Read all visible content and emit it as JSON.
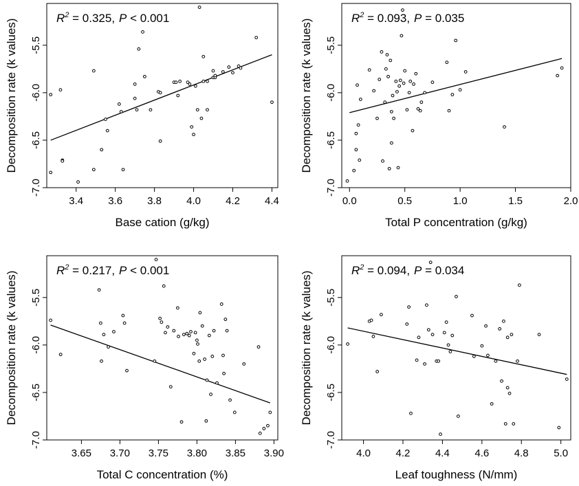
{
  "chart_data": [
    {
      "type": "scatter",
      "xlabel": "Base cation (g/kg)",
      "ylabel": "Decomposition rate (k values)",
      "xlim": [
        3.25,
        4.43
      ],
      "ylim": [
        -7.0,
        -5.06
      ],
      "xticks": [
        3.4,
        3.6,
        3.8,
        4.0,
        4.2,
        4.4
      ],
      "xtick_labels": [
        "3.4",
        "3.6",
        "3.8",
        "4.0",
        "4.2",
        "4.4"
      ],
      "yticks": [
        -7.0,
        -6.5,
        -6.0,
        -5.5
      ],
      "ytick_labels": [
        "-7.0",
        "-6.5",
        "-6.0",
        "-5.5"
      ],
      "annotation": {
        "r2_label": "R",
        "r2_sup": "2",
        "r2_value": " = 0.325,",
        "p_label": "P",
        "p_value": " < 0.001"
      },
      "fit_line": {
        "x": [
          3.27,
          4.4
        ],
        "y": [
          -6.5,
          -5.6
        ]
      },
      "points": {
        "x": [
          3.27,
          3.27,
          3.32,
          3.33,
          3.33,
          3.41,
          3.49,
          3.49,
          3.53,
          3.55,
          3.56,
          3.62,
          3.63,
          3.64,
          3.7,
          3.7,
          3.71,
          3.72,
          3.74,
          3.75,
          3.78,
          3.82,
          3.83,
          3.83,
          3.9,
          3.91,
          3.92,
          3.93,
          3.97,
          3.98,
          3.99,
          4.0,
          4.01,
          4.02,
          4.03,
          4.04,
          4.05,
          4.05,
          4.07,
          4.07,
          4.1,
          4.1,
          4.11,
          4.11,
          4.15,
          4.18,
          4.2,
          4.23,
          4.24,
          4.32,
          4.4
        ],
        "y": [
          -6.02,
          -6.84,
          -5.97,
          -6.71,
          -6.72,
          -6.94,
          -5.77,
          -6.81,
          -6.6,
          -6.28,
          -6.4,
          -6.12,
          -6.2,
          -6.81,
          -6.06,
          -5.91,
          -6.18,
          -5.54,
          -5.36,
          -5.83,
          -6.18,
          -5.99,
          -6.51,
          -6.0,
          -5.89,
          -5.89,
          -6.03,
          -5.88,
          -5.89,
          -5.91,
          -6.36,
          -6.44,
          -5.93,
          -6.18,
          -5.1,
          -6.27,
          -5.62,
          -5.88,
          -6.18,
          -5.88,
          -5.84,
          -5.77,
          -5.84,
          -5.82,
          -5.78,
          -5.73,
          -5.79,
          -5.72,
          -5.74,
          -5.42,
          -6.1
        ]
      }
    },
    {
      "type": "scatter",
      "xlabel": "Total P concentration (g/kg)",
      "ylabel": "Decomposition rate (k values)",
      "xlim": [
        -0.07,
        2.0
      ],
      "ylim": [
        -7.0,
        -5.06
      ],
      "xticks": [
        0.0,
        0.5,
        1.0,
        1.5,
        2.0
      ],
      "xtick_labels": [
        "0.0",
        "0.5",
        "1.0",
        "1.5",
        "2.0"
      ],
      "yticks": [
        -7.0,
        -6.5,
        -6.0,
        -5.5
      ],
      "ytick_labels": [
        "-7.0",
        "-6.5",
        "-6.0",
        "-5.5"
      ],
      "annotation": {
        "r2_label": "R",
        "r2_sup": "2",
        "r2_value": " = 0.093,",
        "p_label": "P",
        "p_value": " = 0.035"
      },
      "fit_line": {
        "x": [
          0.0,
          1.92
        ],
        "y": [
          -6.21,
          -5.64
        ]
      },
      "points": {
        "x": [
          -0.02,
          0.04,
          0.06,
          0.06,
          0.07,
          0.08,
          0.09,
          0.1,
          0.18,
          0.22,
          0.25,
          0.27,
          0.29,
          0.3,
          0.32,
          0.33,
          0.34,
          0.35,
          0.36,
          0.37,
          0.38,
          0.38,
          0.39,
          0.4,
          0.42,
          0.43,
          0.44,
          0.45,
          0.46,
          0.47,
          0.48,
          0.49,
          0.5,
          0.52,
          0.54,
          0.55,
          0.57,
          0.58,
          0.6,
          0.62,
          0.64,
          0.65,
          0.68,
          0.75,
          0.88,
          0.9,
          0.93,
          0.96,
          1.0,
          1.05,
          1.4,
          1.88,
          1.92
        ],
        "y": [
          -6.93,
          -6.82,
          -6.6,
          -6.43,
          -5.92,
          -6.34,
          -6.71,
          -6.07,
          -5.76,
          -5.98,
          -6.27,
          -5.86,
          -5.57,
          -6.72,
          -6.1,
          -5.75,
          -5.6,
          -5.83,
          -6.8,
          -5.66,
          -6.53,
          -6.2,
          -6.03,
          -6.27,
          -5.88,
          -5.99,
          -6.79,
          -5.93,
          -5.87,
          -5.4,
          -5.13,
          -5.9,
          -5.77,
          -6.18,
          -6.0,
          -5.88,
          -6.4,
          -5.91,
          -5.8,
          -6.17,
          -6.19,
          -6.1,
          -6.0,
          -5.89,
          -5.68,
          -6.19,
          -6.02,
          -5.45,
          -5.97,
          -5.78,
          -6.36,
          -5.82,
          -5.74
        ]
      }
    },
    {
      "type": "scatter",
      "xlabel": "Total C concentration (%)",
      "ylabel": "Decomposition rate (k values)",
      "xlim": [
        3.605,
        3.905
      ],
      "ylim": [
        -7.0,
        -5.06
      ],
      "xticks": [
        3.65,
        3.7,
        3.75,
        3.8,
        3.85,
        3.9
      ],
      "xtick_labels": [
        "3.65",
        "3.70",
        "3.75",
        "3.80",
        "3.85",
        "3.90"
      ],
      "yticks": [
        -7.0,
        -6.5,
        -6.0,
        -5.5
      ],
      "ytick_labels": [
        "-7.0",
        "-6.5",
        "-6.0",
        "-5.5"
      ],
      "annotation": {
        "r2_label": "R",
        "r2_sup": "2",
        "r2_value": " = 0.217,",
        "p_label": "P",
        "p_value": " < 0.001"
      },
      "fit_line": {
        "x": [
          3.61,
          3.895
        ],
        "y": [
          -5.79,
          -6.61
        ]
      },
      "points": {
        "x": [
          3.61,
          3.623,
          3.673,
          3.675,
          3.676,
          3.679,
          3.685,
          3.692,
          3.704,
          3.706,
          3.709,
          3.745,
          3.747,
          3.752,
          3.754,
          3.757,
          3.759,
          3.762,
          3.766,
          3.77,
          3.775,
          3.776,
          3.78,
          3.783,
          3.787,
          3.79,
          3.792,
          3.796,
          3.798,
          3.8,
          3.801,
          3.803,
          3.804,
          3.807,
          3.81,
          3.812,
          3.813,
          3.816,
          3.818,
          3.82,
          3.822,
          3.826,
          3.832,
          3.834,
          3.835,
          3.837,
          3.839,
          3.843,
          3.849,
          3.861,
          3.88,
          3.882,
          3.887,
          3.892,
          3.895
        ],
        "y": [
          -5.74,
          -6.1,
          -5.42,
          -5.77,
          -6.17,
          -5.89,
          -6.02,
          -5.86,
          -5.69,
          -5.77,
          -6.27,
          -6.17,
          -5.1,
          -5.72,
          -5.76,
          -5.38,
          -5.87,
          -5.81,
          -6.44,
          -5.85,
          -5.61,
          -5.91,
          -6.81,
          -5.89,
          -5.88,
          -5.9,
          -5.86,
          -6.09,
          -5.87,
          -5.95,
          -5.99,
          -6.17,
          -5.66,
          -5.8,
          -6.15,
          -6.8,
          -6.37,
          -5.9,
          -6.52,
          -6.12,
          -5.85,
          -6.4,
          -5.57,
          -6.11,
          -6.3,
          -5.73,
          -5.85,
          -6.58,
          -6.71,
          -6.2,
          -6.02,
          -6.93,
          -6.88,
          -6.85,
          -6.71
        ]
      }
    },
    {
      "type": "scatter",
      "xlabel": "Leaf toughness (N/mm)",
      "ylabel": "Decomposition rate (k values)",
      "xlim": [
        3.89,
        5.05
      ],
      "ylim": [
        -7.0,
        -5.06
      ],
      "xticks": [
        4.0,
        4.2,
        4.4,
        4.6,
        4.8,
        5.0
      ],
      "xtick_labels": [
        "4.0",
        "4.2",
        "4.4",
        "4.6",
        "4.8",
        "5.0"
      ],
      "yticks": [
        -7.0,
        -6.5,
        -6.0,
        -5.5
      ],
      "ytick_labels": [
        "-7.0",
        "-6.5",
        "-6.0",
        "-5.5"
      ],
      "annotation": {
        "r2_label": "R",
        "r2_sup": "2",
        "r2_value": " = 0.094,",
        "p_label": "P",
        "p_value": " = 0.034"
      },
      "fit_line": {
        "x": [
          3.92,
          5.03
        ],
        "y": [
          -5.82,
          -6.31
        ]
      },
      "points": {
        "x": [
          3.92,
          4.03,
          4.04,
          4.05,
          4.07,
          4.09,
          4.22,
          4.23,
          4.24,
          4.27,
          4.28,
          4.31,
          4.32,
          4.33,
          4.34,
          4.35,
          4.37,
          4.38,
          4.39,
          4.41,
          4.42,
          4.43,
          4.44,
          4.45,
          4.47,
          4.48,
          4.55,
          4.56,
          4.6,
          4.62,
          4.63,
          4.65,
          4.67,
          4.69,
          4.7,
          4.71,
          4.72,
          4.73,
          4.73,
          4.74,
          4.75,
          4.76,
          4.78,
          4.79,
          4.89,
          4.99,
          5.03
        ],
        "y": [
          -5.99,
          -5.75,
          -5.74,
          -5.91,
          -6.28,
          -5.68,
          -5.78,
          -5.6,
          -6.72,
          -6.16,
          -5.92,
          -6.2,
          -5.58,
          -5.84,
          -5.13,
          -5.89,
          -6.17,
          -6.17,
          -6.94,
          -5.87,
          -5.76,
          -6.0,
          -6.07,
          -5.9,
          -5.49,
          -6.75,
          -5.69,
          -6.12,
          -6.01,
          -5.8,
          -6.11,
          -6.62,
          -6.17,
          -5.83,
          -6.38,
          -5.75,
          -6.83,
          -6.45,
          -5.92,
          -6.51,
          -5.89,
          -6.83,
          -6.17,
          -5.37,
          -5.89,
          -6.87,
          -6.36
        ]
      }
    }
  ]
}
